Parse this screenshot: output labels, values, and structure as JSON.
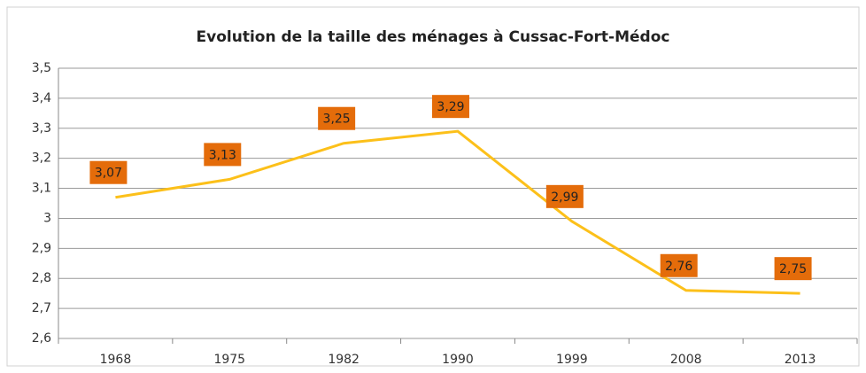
{
  "chart_data": {
    "type": "line",
    "title": "Evolution de la taille des ménages à Cussac-Fort-Médoc",
    "categories": [
      "1968",
      "1975",
      "1982",
      "1990",
      "1999",
      "2008",
      "2013"
    ],
    "values": [
      3.07,
      3.13,
      3.25,
      3.29,
      2.99,
      2.76,
      2.75
    ],
    "value_labels": [
      "3,07",
      "3,13",
      "3,25",
      "3,29",
      "2,99",
      "2,76",
      "2,75"
    ],
    "color": "#fcc01a",
    "label_color": "#e46c0a",
    "ylim": [
      2.6,
      3.5
    ],
    "yticks": [
      {
        "value": 2.6,
        "label": "2,6"
      },
      {
        "value": 2.7,
        "label": "2,7"
      },
      {
        "value": 2.8,
        "label": "2,8"
      },
      {
        "value": 2.9,
        "label": "2,9"
      },
      3,
      {
        "value": 3.1,
        "label": "3,1"
      },
      {
        "value": 3.2,
        "label": "3,2"
      },
      {
        "value": 3.3,
        "label": "3,3"
      },
      {
        "value": 3.4,
        "label": "3,4"
      },
      {
        "value": 3.5,
        "label": "3,5"
      }
    ],
    "grid": true
  }
}
